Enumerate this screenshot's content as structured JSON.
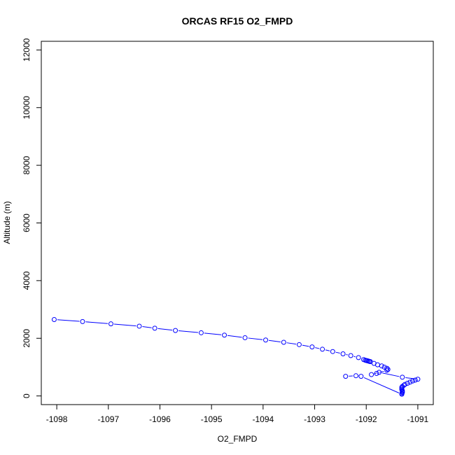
{
  "chart_data": {
    "type": "line",
    "title": "ORCAS RF15 O2_FMPD",
    "xlabel": "O2_FMPD",
    "ylabel": "Altitude (m)",
    "xlim": [
      -1098.3,
      -1090.7
    ],
    "ylim": [
      -300,
      12300
    ],
    "xticks": [
      -1098,
      -1097,
      -1096,
      -1095,
      -1094,
      -1093,
      -1092,
      -1091
    ],
    "yticks": [
      0,
      2000,
      4000,
      6000,
      8000,
      10000,
      12000
    ],
    "series_color": "#0000ff",
    "marker": "open-circle",
    "line_style": "dashed-segments",
    "grid": false,
    "legend": "none",
    "series": [
      {
        "x": [
          -1098.05,
          -1097.5,
          -1096.95,
          -1096.4,
          -1096.1,
          -1095.7,
          -1095.2,
          -1094.75,
          -1094.35,
          -1093.95,
          -1093.6,
          -1093.3,
          -1093.05,
          -1092.85,
          -1092.65,
          -1092.45,
          -1092.3,
          -1092.15,
          -1092.05,
          -1092.02,
          -1092.0,
          -1091.98,
          -1091.96,
          -1091.94,
          -1091.92,
          -1091.85,
          -1091.78,
          -1091.7,
          -1091.65,
          -1091.6,
          -1091.58,
          -1091.6,
          -1091.8,
          -1091.9,
          -1091.75,
          -1091.3,
          -1091.0,
          -1091.05,
          -1091.1,
          -1091.15,
          -1091.2,
          -1091.25,
          -1091.27,
          -1091.3,
          -1091.31,
          -1091.31,
          -1091.31,
          -1091.3,
          -1091.3,
          -1091.3,
          -1091.31,
          -1091.31,
          -1092.1,
          -1092.2,
          -1092.4
        ],
        "y": [
          2650,
          2580,
          2500,
          2420,
          2350,
          2270,
          2190,
          2110,
          2020,
          1940,
          1860,
          1780,
          1700,
          1620,
          1540,
          1460,
          1400,
          1330,
          1260,
          1240,
          1230,
          1220,
          1210,
          1200,
          1190,
          1130,
          1080,
          1040,
          1000,
          960,
          920,
          890,
          780,
          740,
          820,
          650,
          580,
          550,
          520,
          480,
          440,
          400,
          370,
          330,
          300,
          260,
          220,
          180,
          150,
          120,
          90,
          60,
          680,
          700,
          680
        ]
      }
    ]
  }
}
